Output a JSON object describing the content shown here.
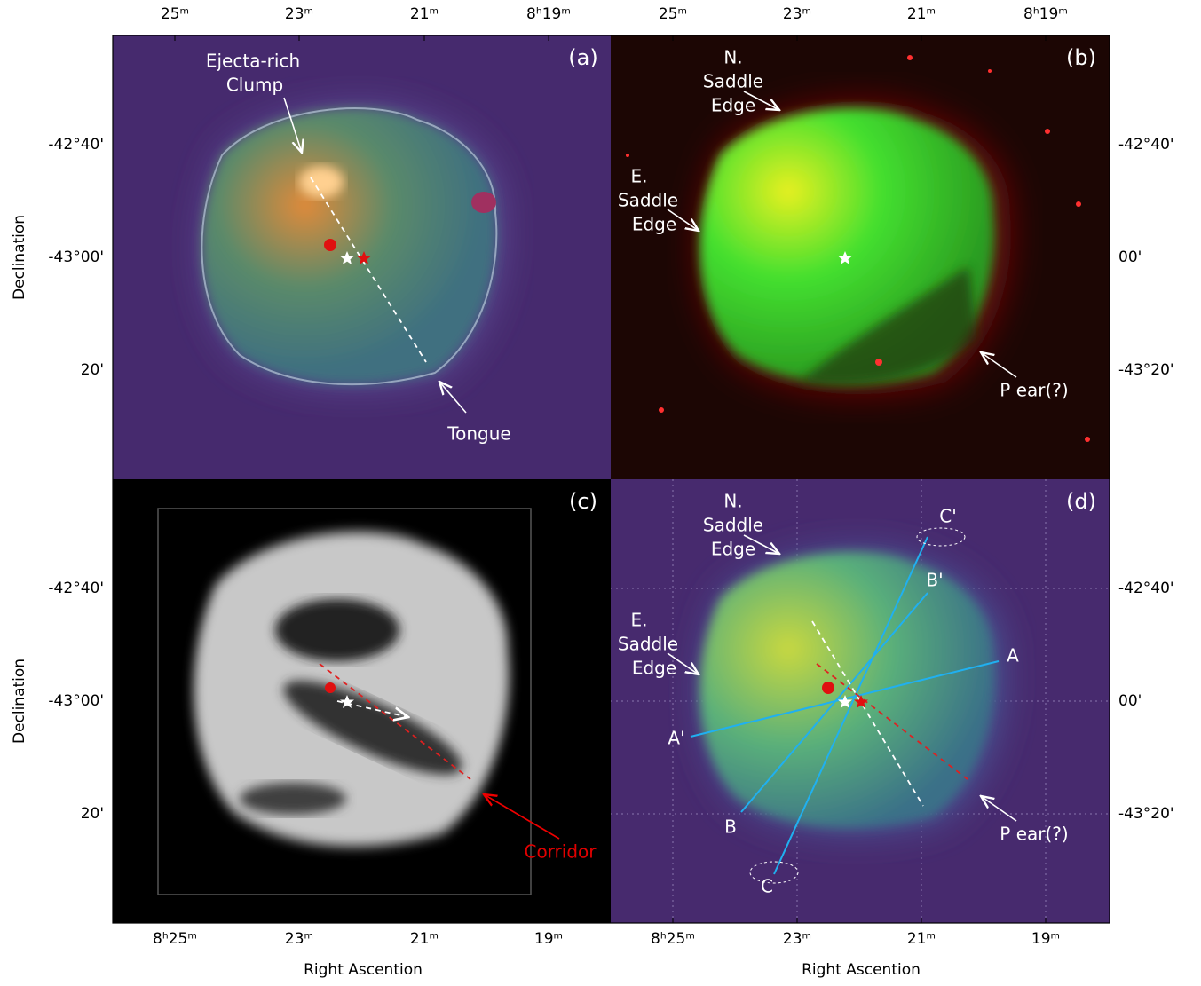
{
  "panels": [
    {
      "label": "(a)",
      "annotations": [
        "Ejecta-rich",
        "Clump",
        "Tongue"
      ]
    },
    {
      "label": "(b)",
      "annotations": [
        "N.",
        "Saddle",
        "Edge",
        "E.",
        "Saddle",
        "Edge",
        "P ear(?)"
      ]
    },
    {
      "label": "(c)",
      "annotations": [
        "Corridor"
      ]
    },
    {
      "label": "(d)",
      "annotations": [
        "N.",
        "Saddle",
        "Edge",
        "E.",
        "Saddle",
        "Edge",
        "P ear(?)",
        "A",
        "A'",
        "B",
        "B'",
        "C",
        "C'"
      ]
    }
  ],
  "axes": {
    "top_ticks": [
      "25ᵐ",
      "23ᵐ",
      "21ᵐ",
      "8ʰ19ᵐ"
    ],
    "bottom_ticks": [
      "8ʰ25ᵐ",
      "23ᵐ",
      "21ᵐ",
      "19ᵐ"
    ],
    "left_ticks": [
      "-42°40'",
      "-43°00'",
      "20'"
    ],
    "right_ticks": [
      "-42°40'",
      "00'",
      "-43°20'"
    ],
    "x_label": "Right Ascention",
    "y_label": "Declination"
  }
}
